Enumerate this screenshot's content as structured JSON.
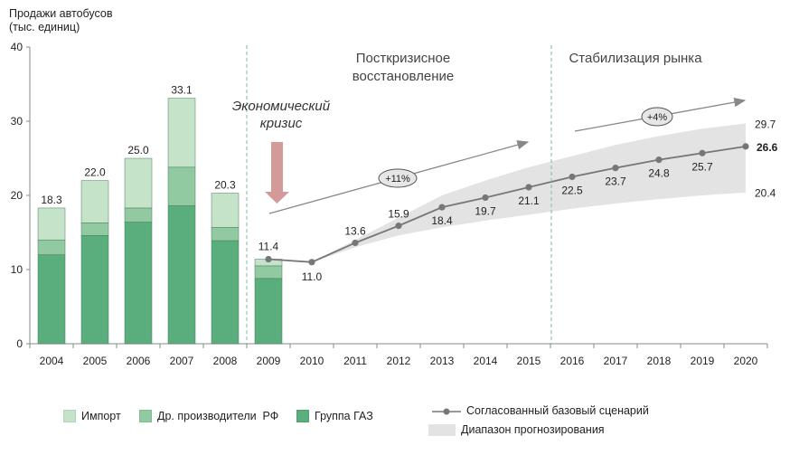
{
  "chart_data": {
    "type": "bar+line",
    "ylabel_lines": [
      "Продажи автобусов",
      "(тыс. единиц)"
    ],
    "ylim": [
      0,
      40
    ],
    "yticks": [
      "0",
      "10",
      "20",
      "30",
      "40"
    ],
    "categories": [
      "2004",
      "2005",
      "2006",
      "2007",
      "2008",
      "2009",
      "2010",
      "2011",
      "2012",
      "2013",
      "2014",
      "2015",
      "2016",
      "2017",
      "2018",
      "2019",
      "2020"
    ],
    "stacked_bars": {
      "categories": [
        "2004",
        "2005",
        "2006",
        "2007",
        "2008",
        "2009"
      ],
      "series": [
        {
          "name": "Группа ГАЗ",
          "color": "#5aad7c",
          "values": [
            12.0,
            14.6,
            16.4,
            18.6,
            13.9,
            8.8
          ]
        },
        {
          "name": "Др. производители  РФ",
          "color": "#91c9a0",
          "values": [
            2.0,
            1.7,
            1.9,
            5.2,
            1.8,
            1.7
          ]
        },
        {
          "name": "Импорт",
          "color": "#c4e3c9",
          "values": [
            4.3,
            5.7,
            6.7,
            9.3,
            4.6,
            0.9
          ]
        }
      ],
      "totals": [
        "18.3",
        "22.0",
        "25.0",
        "33.1",
        "20.3",
        "11.4"
      ]
    },
    "baseline": {
      "name": "Согласованный базовый сценарий",
      "color": "#777777",
      "x": [
        "2009",
        "2010",
        "2011",
        "2012",
        "2013",
        "2014",
        "2015",
        "2016",
        "2017",
        "2018",
        "2019",
        "2020"
      ],
      "values": [
        11.4,
        11.0,
        13.6,
        15.9,
        18.4,
        19.7,
        21.1,
        22.5,
        23.7,
        24.8,
        25.7,
        26.6
      ],
      "labels": [
        "11.4",
        "11.0",
        "13.6",
        "15.9",
        "18.4",
        "19.7",
        "21.1",
        "22.5",
        "23.7",
        "24.8",
        "25.7",
        "26.6"
      ]
    },
    "forecast_range": {
      "name": "Диапазон прогнозирования",
      "color": "#e3e3e3",
      "x": [
        "2010",
        "2011",
        "2012",
        "2013",
        "2014",
        "2015",
        "2016",
        "2017",
        "2018",
        "2019",
        "2020"
      ],
      "upper": [
        11.0,
        14.0,
        17.0,
        20.0,
        22.0,
        23.8,
        25.3,
        26.8,
        28.0,
        29.0,
        29.7
      ],
      "lower": [
        11.0,
        13.0,
        14.6,
        15.7,
        16.6,
        17.4,
        18.2,
        18.9,
        19.5,
        20.0,
        20.4
      ],
      "upper_label": "29.7",
      "lower_label": "20.4"
    },
    "phases": [
      {
        "lines": [
          "Экономический",
          "кризис"
        ]
      },
      {
        "lines": [
          "Посткризисное",
          "восстановление"
        ]
      },
      {
        "lines": [
          "Стабилизация рынка"
        ]
      }
    ],
    "growth_badges": [
      {
        "label": "+11%",
        "from_year": "2009",
        "to_year": "2015"
      },
      {
        "label": "+4%",
        "from_year": "2016",
        "to_year": "2020"
      }
    ]
  },
  "legend": {
    "import": "Импорт",
    "other_rf": "Др. производители  РФ",
    "gaz": "Группа ГАЗ",
    "baseline": "Согласованный базовый сценарий",
    "range": "Диапазон прогнозирования"
  },
  "colors": {
    "gaz": "#5aad7c",
    "other_rf": "#91c9a0",
    "import": "#c4e3c9",
    "crisis_arrow": "#d49a9a",
    "divider": "#7fb8a0"
  }
}
